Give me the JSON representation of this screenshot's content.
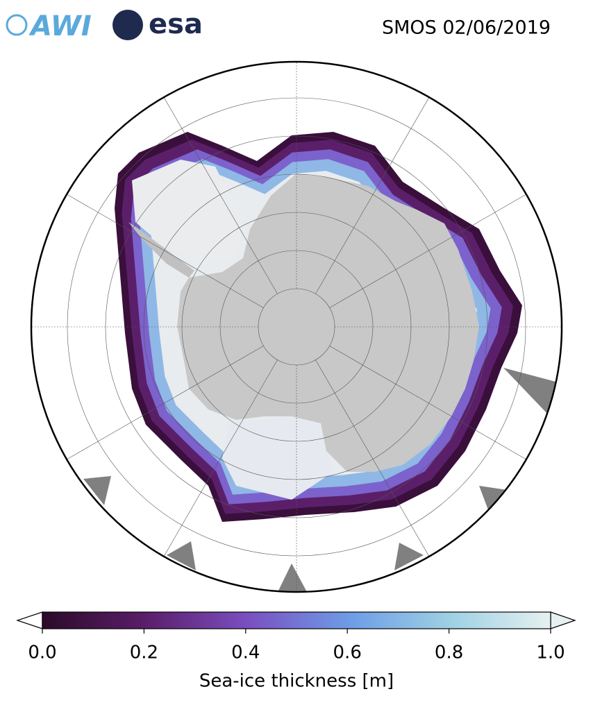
{
  "header": {
    "logos": [
      "AWI",
      "esa"
    ],
    "title": "SMOS 02/06/2019"
  },
  "colorbar": {
    "lim": [
      0,
      1
    ],
    "ticks": [
      {
        "value": 0,
        "label": "0.0"
      },
      0.2,
      0.4,
      0.6,
      0.8,
      {
        "value": 1,
        "label": "1.0"
      }
    ],
    "label": "Sea-ice thickness [m]"
  }
}
